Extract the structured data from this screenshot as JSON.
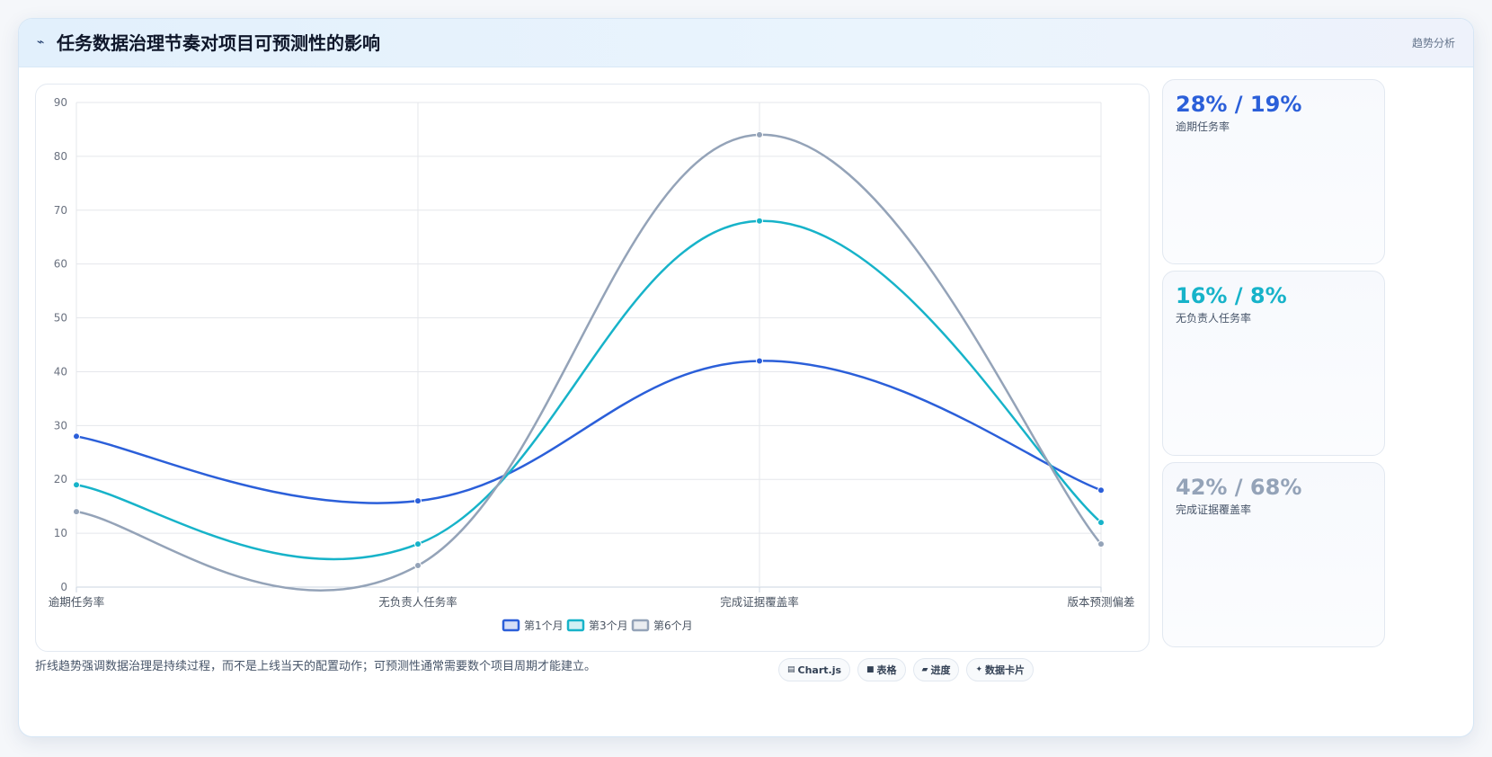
{
  "header": {
    "icon": "pulse-icon",
    "title": "任务数据治理节奏对项目可预测性的影响",
    "tag": "趋势分析"
  },
  "chart_data": {
    "type": "line",
    "categories": [
      "逾期任务率",
      "无负责人任务率",
      "完成证据覆盖率",
      "版本预测偏差"
    ],
    "series": [
      {
        "name": "第1个月",
        "values": [
          28,
          16,
          42,
          18
        ],
        "color": "#2b5fd9"
      },
      {
        "name": "第3个月",
        "values": [
          19,
          8,
          68,
          12
        ],
        "color": "#17b3c9"
      },
      {
        "name": "第6个月",
        "values": [
          14,
          4,
          84,
          8
        ],
        "color": "#94a3b8"
      }
    ],
    "ylim": [
      0,
      90
    ],
    "yticks": [
      0,
      10,
      20,
      30,
      40,
      50,
      60,
      70,
      80,
      90
    ],
    "grid": true,
    "legend": "bottom",
    "smooth": true
  },
  "stats": [
    {
      "value": "28% / 19%",
      "label": "逾期任务率",
      "color": "#2b5fd9"
    },
    {
      "value": "16% / 8%",
      "label": "无负责人任务率",
      "color": "#17b3c9"
    },
    {
      "value": "42% / 68%",
      "label": "完成证据覆盖率",
      "color": "#94a3b8"
    }
  ],
  "footer": {
    "note": "折线趋势强调数据治理是持续过程，而不是上线当天的配置动作；可预测性通常需要数个项目周期才能建立。",
    "chips": [
      {
        "icon": "document-icon",
        "glyph": "▤",
        "label": "Chart.js"
      },
      {
        "icon": "table-icon",
        "glyph": "■",
        "label": "表格"
      },
      {
        "icon": "progress-icon",
        "glyph": "▰",
        "label": "进度"
      },
      {
        "icon": "sparkle-icon",
        "glyph": "✦",
        "label": "数据卡片"
      }
    ]
  }
}
